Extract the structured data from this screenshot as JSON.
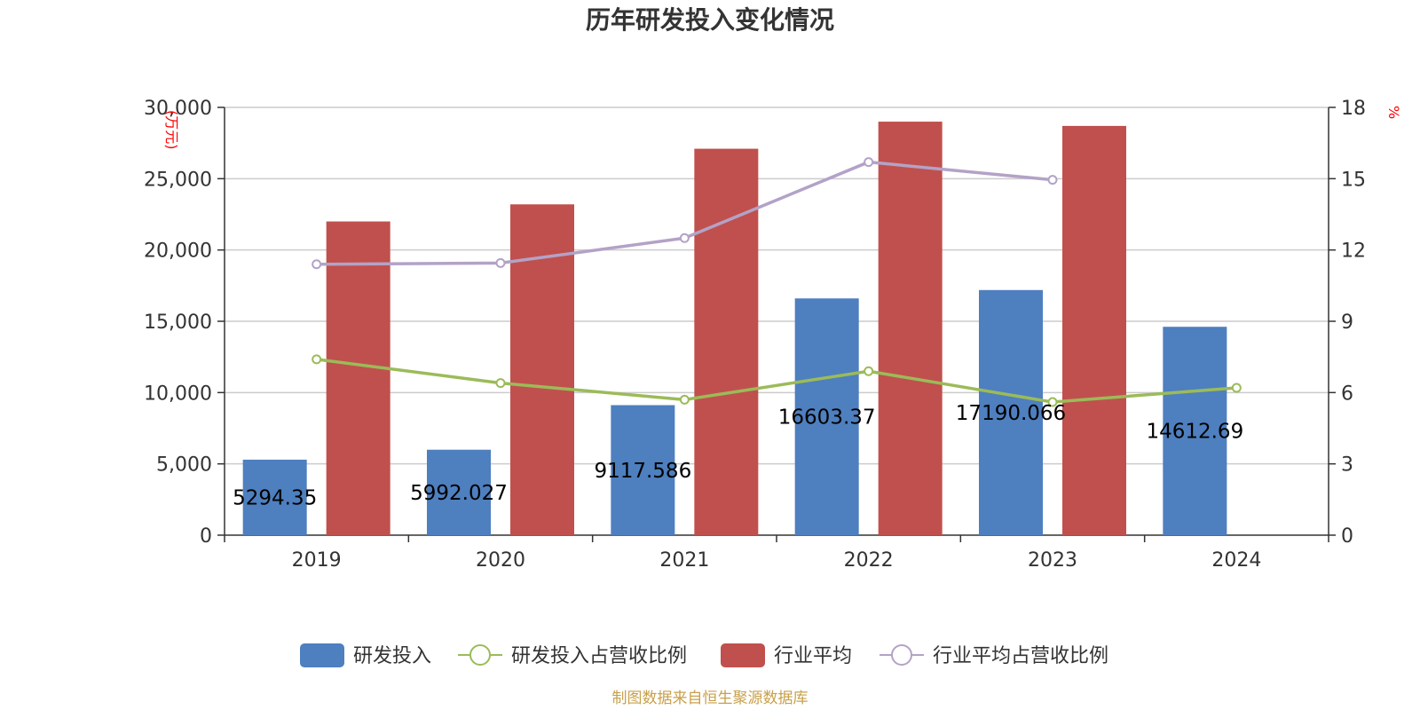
{
  "chart_data": {
    "type": "bar",
    "title": "历年研发投入变化情况",
    "categories": [
      "2019",
      "2020",
      "2021",
      "2022",
      "2023",
      "2024"
    ],
    "left_axis": {
      "unit": "(万元)",
      "range": [
        0,
        30000
      ],
      "ticks": [
        "0",
        "5,000",
        "10,000",
        "15,000",
        "20,000",
        "25,000",
        "30,000"
      ]
    },
    "right_axis": {
      "unit": "%",
      "range": [
        0,
        18
      ],
      "ticks": [
        "0",
        "3",
        "6",
        "9",
        "12",
        "15",
        "18"
      ]
    },
    "grid": true,
    "legend_position": "bottom",
    "series": [
      {
        "name": "研发投入",
        "kind": "bar",
        "axis": "left",
        "color": "#4e7fbf",
        "values": [
          5294.35,
          5992.027,
          9117.586,
          16603.37,
          17190.066,
          14612.69
        ],
        "labels": [
          "5294.35",
          "5992.027",
          "9117.586",
          "16603.37",
          "17190.066",
          "14612.69"
        ]
      },
      {
        "name": "研发投入占营收比例",
        "kind": "line",
        "axis": "right",
        "color": "#9bbb59",
        "values": [
          7.4,
          6.4,
          5.7,
          6.9,
          5.6,
          6.2
        ]
      },
      {
        "name": "行业平均",
        "kind": "bar",
        "axis": "left",
        "color": "#c0504d",
        "values": [
          22000,
          23200,
          27100,
          29000,
          28700,
          null
        ]
      },
      {
        "name": "行业平均占营收比例",
        "kind": "line",
        "axis": "right",
        "color": "#b3a2c7",
        "values": [
          11.4,
          11.45,
          12.5,
          15.7,
          14.95,
          null
        ]
      }
    ],
    "source": "制图数据来自恒生聚源数据库"
  }
}
